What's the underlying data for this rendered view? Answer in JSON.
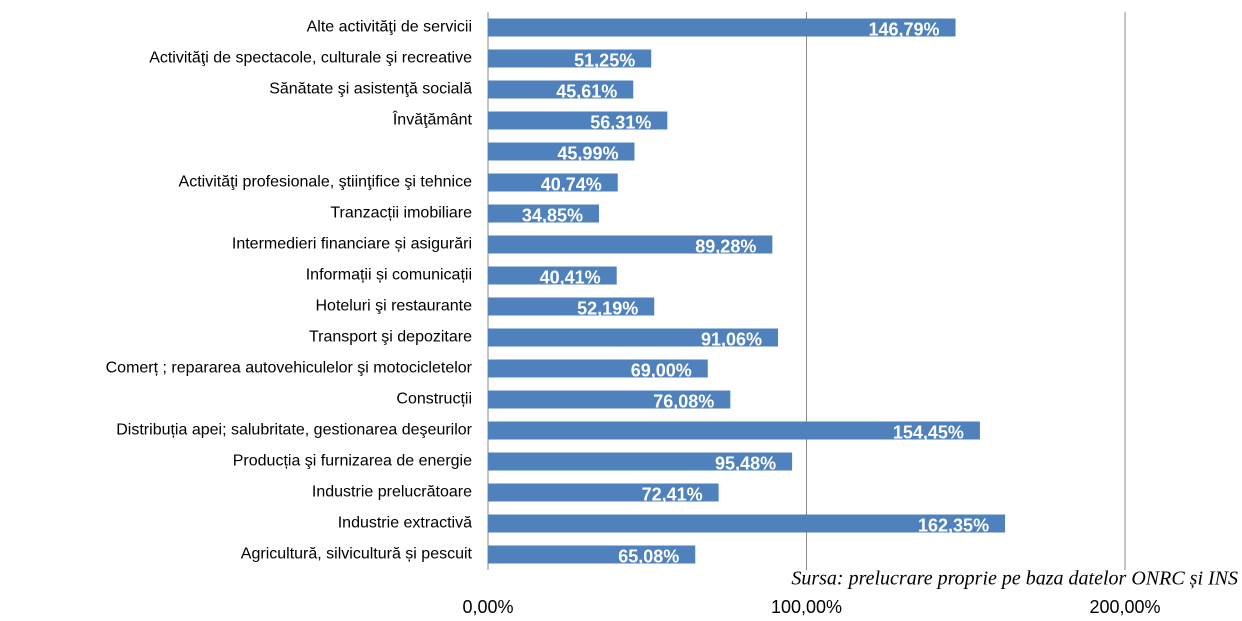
{
  "chart_data": {
    "type": "bar",
    "orientation": "horizontal",
    "categories": [
      "Alte activităţi de servicii",
      "Activităţi de spectacole, culturale şi recreative",
      "Sănătate şi asistenţă socială",
      "Învăţământ",
      null,
      "Activităţi profesionale, ştiinţifice şi tehnice",
      "Tranzacții imobiliare",
      "Intermedieri financiare și asigurări",
      "Informații și comunicații",
      "Hoteluri şi restaurante",
      "Transport şi depozitare",
      "Comerț ; repararea autovehiculelor şi motocicletelor",
      "Construcții",
      "Distribuția apei; salubritate, gestionarea deşeurilor",
      "Producția şi furnizarea de energie",
      "Industrie prelucrătoare",
      "Industrie extractivă",
      "Agricultură, silvicultură și pescuit"
    ],
    "values": [
      146.79,
      51.25,
      45.61,
      56.31,
      45.99,
      40.74,
      34.85,
      89.28,
      40.41,
      52.19,
      91.06,
      69.0,
      76.08,
      154.45,
      95.48,
      72.41,
      162.35,
      65.08
    ],
    "value_labels": [
      "146,79%",
      "51,25%",
      "45,61%",
      "56,31%",
      "45,99%",
      "40,74%",
      "34,85%",
      "89,28%",
      "40,41%",
      "52,19%",
      "91,06%",
      "69,00%",
      "76,08%",
      "154,45%",
      "95,48%",
      "72,41%",
      "162,35%",
      "65,08%"
    ],
    "color": "#4f81bd",
    "xlim": [
      0,
      200
    ],
    "xticks": [
      {
        "value": 0,
        "label": "0,00%"
      },
      {
        "value": 100,
        "label": "100,00%"
      },
      {
        "value": 200,
        "label": "200,00%"
      }
    ],
    "grid": true,
    "annotation": "Sursa: prelucrare proprie pe baza datelor ONRC și INS"
  }
}
